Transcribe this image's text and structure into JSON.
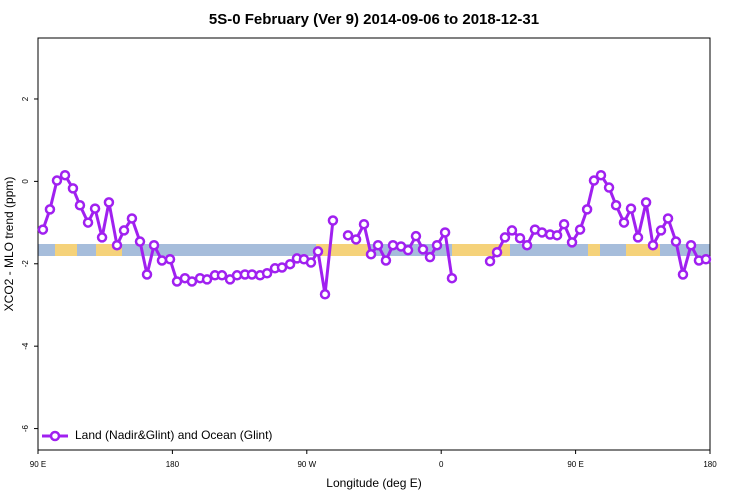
{
  "chart_data": {
    "type": "line",
    "title": "5S-0 February (Ver 9)   2014-09-06 to 2018-12-31",
    "x_label": "Longitude (deg E)",
    "y_label": "XCO2 - MLO trend (ppm)",
    "x": [
      93.3,
      98.0,
      102.7,
      108.1,
      113.4,
      118.1,
      123.5,
      128.2,
      132.9,
      137.5,
      142.9,
      147.6,
      152.9,
      158.3,
      163.0,
      167.7,
      173.0,
      178.4,
      183.1,
      188.4,
      193.1,
      198.5,
      203.2,
      208.5,
      213.2,
      218.6,
      223.3,
      228.6,
      233.3,
      238.7,
      243.4,
      248.7,
      253.4,
      258.8,
      263.4,
      268.1,
      272.8,
      277.5,
      282.2,
      287.5,
      292.9,
      297.6,
      303.0,
      308.3,
      313.0,
      317.7,
      323.0,
      327.7,
      333.1,
      337.8,
      343.1,
      347.8,
      352.5,
      357.2,
      362.6,
      367.2,
      379.3,
      392.7,
      397.4,
      402.7,
      407.4,
      412.8,
      417.5,
      422.8,
      427.5,
      432.9,
      437.6,
      442.3,
      447.6,
      453.0,
      457.7,
      462.3,
      467.0,
      472.4,
      477.1,
      482.4,
      487.1,
      491.8,
      497.2,
      501.8,
      507.2,
      511.9,
      517.2,
      521.9,
      527.3,
      532.6,
      537.3
    ],
    "series": [
      {
        "name": "Land (Nadir&Glint) and Ocean (Glint)",
        "color": "#a020f0",
        "values": [
          -1.17,
          -0.68,
          0.02,
          0.15,
          -0.17,
          -0.58,
          -1.0,
          -0.66,
          -1.36,
          -0.51,
          -1.55,
          -1.19,
          -0.9,
          -1.46,
          -2.26,
          -1.55,
          -1.92,
          -1.89,
          -2.43,
          -2.35,
          -2.43,
          -2.35,
          -2.38,
          -2.28,
          -2.28,
          -2.38,
          -2.28,
          -2.26,
          -2.26,
          -2.28,
          -2.23,
          -2.11,
          -2.09,
          -2.01,
          -1.87,
          -1.89,
          -1.97,
          -1.7,
          -2.74,
          -0.95,
          null,
          -1.31,
          -1.41,
          -1.04,
          -1.77,
          -1.55,
          -1.92,
          -1.55,
          -1.58,
          -1.67,
          -1.33,
          -1.65,
          -1.84,
          -1.55,
          -1.24,
          -2.35,
          null,
          -1.94,
          -1.72,
          -1.36,
          -1.19,
          -1.38,
          -1.55,
          -1.17,
          -1.24,
          -1.29,
          -1.31,
          -1.04,
          -1.48,
          -1.17,
          -0.68,
          0.02,
          0.15,
          -0.15,
          -0.58,
          -1.0,
          -0.66,
          -1.36,
          -0.51,
          -1.55,
          -1.19,
          -0.9,
          -1.46,
          -2.26,
          -1.55,
          -1.92,
          -1.89
        ]
      }
    ],
    "xlim": [
      90,
      540
    ],
    "xticks": [
      {
        "value": 90,
        "label": "90 E"
      },
      180,
      {
        "value": 270,
        "label": "90 W"
      },
      {
        "value": 360,
        "label": "0"
      },
      {
        "value": 450,
        "label": "90 E"
      },
      {
        "value": 540,
        "label": "180"
      }
    ],
    "ylim": [
      -6.52,
      3.48
    ],
    "yticks": [
      -6,
      -4,
      -2,
      0,
      2
    ],
    "legend": "bottom-left"
  }
}
